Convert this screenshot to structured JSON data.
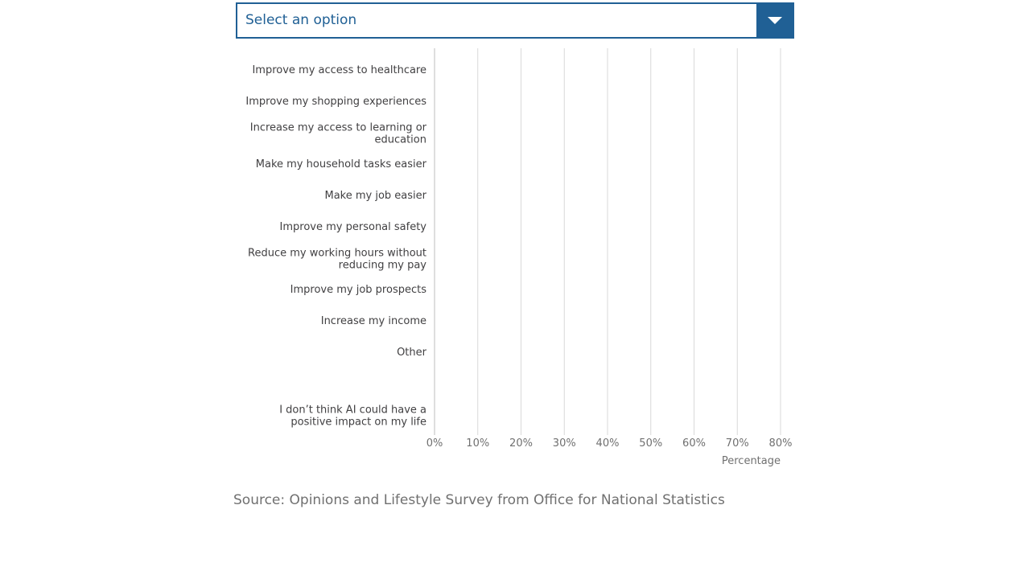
{
  "dropdown": {
    "selected_label": "Select an option"
  },
  "chart_data": {
    "type": "bar",
    "orientation": "horizontal",
    "categories": [
      [
        "Improve my access to healthcare"
      ],
      [
        "Improve my shopping experiences"
      ],
      [
        "Increase my access to learning or",
        "education"
      ],
      [
        "Make my household tasks easier"
      ],
      [
        "Make my job easier"
      ],
      [
        "Improve my personal safety"
      ],
      [
        "Reduce my working hours without",
        "reducing my pay"
      ],
      [
        "Improve my job prospects"
      ],
      [
        "Increase my income"
      ],
      [
        "Other"
      ],
      [
        "I don’t think AI could have a",
        "positive impact on my life"
      ]
    ],
    "values": [
      null,
      null,
      null,
      null,
      null,
      null,
      null,
      null,
      null,
      null,
      null
    ],
    "xlabel": "Percentage",
    "ylabel": "",
    "xlim": [
      0,
      80
    ],
    "xticks": [
      "0%",
      "10%",
      "20%",
      "30%",
      "40%",
      "50%",
      "60%",
      "70%",
      "80%"
    ],
    "grid": true,
    "colors": {
      "bar": "#206095",
      "grid": "#d9d9d9",
      "axis": "#bebebe",
      "label": "#414042",
      "tick": "#707070"
    }
  },
  "source": {
    "text": "Source: Opinions and Lifestyle Survey from Office for National Statistics"
  }
}
